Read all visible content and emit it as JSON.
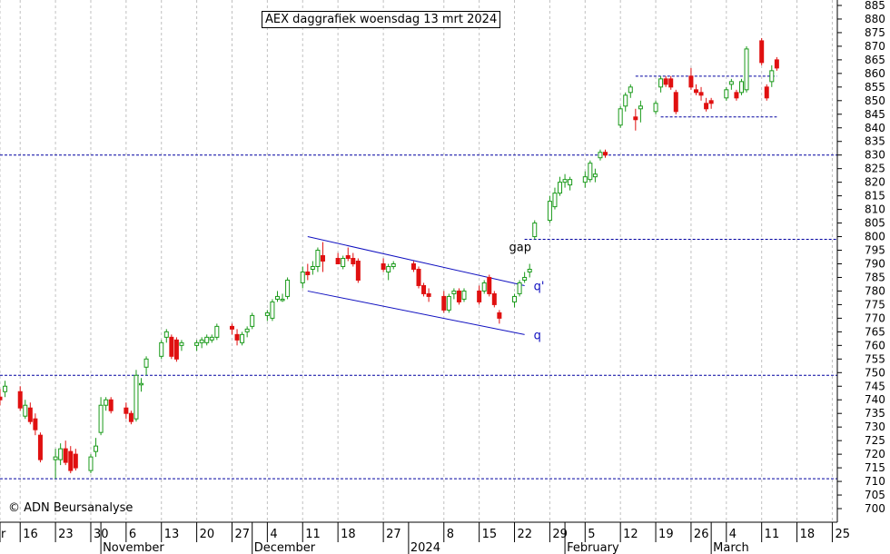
{
  "title": "AEX daggrafiek woensdag 13 mrt 2024",
  "credit": "© ADN Beursanalyse",
  "colors": {
    "up": "#1a9a1a",
    "down": "#e01010",
    "grid": "#c0c0c0",
    "level": "#0000a0",
    "channel": "#1010c0",
    "axis": "#000000"
  },
  "chart_data": {
    "type": "candlestick",
    "title": "AEX daggrafiek woensdag 13 mrt 2024",
    "ylim": [
      695,
      887
    ],
    "yticks": [
      700,
      705,
      710,
      715,
      720,
      725,
      730,
      735,
      740,
      745,
      750,
      755,
      760,
      765,
      770,
      775,
      780,
      785,
      790,
      795,
      800,
      805,
      810,
      815,
      820,
      825,
      830,
      835,
      840,
      845,
      850,
      855,
      860,
      865,
      870,
      875,
      880,
      885
    ],
    "xlim": [
      "2023-10-12",
      "2024-03-26"
    ],
    "day_ticks": [
      {
        "label": "r",
        "date": "2023-10-12"
      },
      {
        "label": "16",
        "date": "2023-10-16"
      },
      {
        "label": "23",
        "date": "2023-10-23"
      },
      {
        "label": "30",
        "date": "2023-10-30"
      },
      {
        "label": "6",
        "date": "2023-11-06"
      },
      {
        "label": "13",
        "date": "2023-11-13"
      },
      {
        "label": "20",
        "date": "2023-11-20"
      },
      {
        "label": "27",
        "date": "2023-11-27"
      },
      {
        "label": "4",
        "date": "2023-12-04"
      },
      {
        "label": "11",
        "date": "2023-12-11"
      },
      {
        "label": "18",
        "date": "2023-12-18"
      },
      {
        "label": "27",
        "date": "2023-12-27"
      },
      {
        "label": "8",
        "date": "2024-01-08"
      },
      {
        "label": "15",
        "date": "2024-01-15"
      },
      {
        "label": "22",
        "date": "2024-01-22"
      },
      {
        "label": "29",
        "date": "2024-01-29"
      },
      {
        "label": "5",
        "date": "2024-02-05"
      },
      {
        "label": "12",
        "date": "2024-02-12"
      },
      {
        "label": "19",
        "date": "2024-02-19"
      },
      {
        "label": "26",
        "date": "2024-02-26"
      },
      {
        "label": "4",
        "date": "2024-03-04"
      },
      {
        "label": "11",
        "date": "2024-03-11"
      },
      {
        "label": "18",
        "date": "2024-03-18"
      },
      {
        "label": "25",
        "date": "2024-03-25"
      }
    ],
    "month_ticks": [
      {
        "label": "November",
        "date": "2023-11-01"
      },
      {
        "label": "December",
        "date": "2023-12-01"
      },
      {
        "label": "2024",
        "date": "2024-01-01"
      },
      {
        "label": "February",
        "date": "2024-02-01"
      },
      {
        "label": "March",
        "date": "2024-03-01"
      }
    ],
    "horizontal_levels": [
      {
        "value": 711,
        "from": "2023-10-12",
        "to": "2024-03-26"
      },
      {
        "value": 749,
        "from": "2023-10-12",
        "to": "2024-03-26"
      },
      {
        "value": 799,
        "from": "2024-01-24",
        "to": "2024-03-26"
      },
      {
        "value": 830,
        "from": "2023-10-12",
        "to": "2024-03-26"
      },
      {
        "value": 859,
        "from": "2024-02-15",
        "to": "2024-03-14"
      },
      {
        "value": 844,
        "from": "2024-02-20",
        "to": "2024-03-14"
      }
    ],
    "trend_lines": [
      {
        "label": "q'",
        "from": {
          "date": "2023-12-12",
          "value": 800
        },
        "to": {
          "date": "2024-01-24",
          "value": 782
        }
      },
      {
        "label": "q",
        "from": {
          "date": "2023-12-12",
          "value": 780
        },
        "to": {
          "date": "2024-01-24",
          "value": 764
        }
      }
    ],
    "annotations": [
      {
        "text": "gap",
        "date": "2024-01-22",
        "value": 795
      }
    ],
    "candles": [
      {
        "date": "2023-10-12",
        "open": 741,
        "high": 744,
        "low": 738,
        "close": 740
      },
      {
        "date": "2023-10-13",
        "open": 743,
        "high": 747,
        "low": 741,
        "close": 745
      },
      {
        "date": "2023-10-16",
        "open": 743,
        "high": 745,
        "low": 736,
        "close": 737
      },
      {
        "date": "2023-10-17",
        "open": 734,
        "high": 740,
        "low": 733,
        "close": 738
      },
      {
        "date": "2023-10-18",
        "open": 737,
        "high": 739,
        "low": 731,
        "close": 732
      },
      {
        "date": "2023-10-19",
        "open": 733,
        "high": 735,
        "low": 727,
        "close": 729
      },
      {
        "date": "2023-10-20",
        "open": 727,
        "high": 728,
        "low": 717,
        "close": 718
      },
      {
        "date": "2023-10-23",
        "open": 718,
        "high": 722,
        "low": 711,
        "close": 719
      },
      {
        "date": "2023-10-24",
        "open": 718,
        "high": 724,
        "low": 716,
        "close": 722
      },
      {
        "date": "2023-10-25",
        "open": 722,
        "high": 725,
        "low": 716,
        "close": 717
      },
      {
        "date": "2023-10-26",
        "open": 721,
        "high": 723,
        "low": 713,
        "close": 714
      },
      {
        "date": "2023-10-27",
        "open": 720,
        "high": 722,
        "low": 714,
        "close": 715
      },
      {
        "date": "2023-10-30",
        "open": 714,
        "high": 720,
        "low": 713,
        "close": 719
      },
      {
        "date": "2023-10-31",
        "open": 721,
        "high": 726,
        "low": 719,
        "close": 723
      },
      {
        "date": "2023-11-01",
        "open": 728,
        "high": 741,
        "low": 727,
        "close": 738
      },
      {
        "date": "2023-11-02",
        "open": 738,
        "high": 741,
        "low": 736,
        "close": 740
      },
      {
        "date": "2023-11-03",
        "open": 740,
        "high": 741,
        "low": 735,
        "close": 736
      },
      {
        "date": "2023-11-06",
        "open": 737,
        "high": 739,
        "low": 733,
        "close": 735
      },
      {
        "date": "2023-11-07",
        "open": 735,
        "high": 736,
        "low": 731,
        "close": 732
      },
      {
        "date": "2023-11-08",
        "open": 733,
        "high": 751,
        "low": 732,
        "close": 749
      },
      {
        "date": "2023-11-09",
        "open": 746,
        "high": 748,
        "low": 743,
        "close": 746
      },
      {
        "date": "2023-11-10",
        "open": 752,
        "high": 756,
        "low": 749,
        "close": 755
      },
      {
        "date": "2023-11-13",
        "open": 756,
        "high": 762,
        "low": 755,
        "close": 761
      },
      {
        "date": "2023-11-14",
        "open": 763,
        "high": 766,
        "low": 761,
        "close": 765
      },
      {
        "date": "2023-11-15",
        "open": 763,
        "high": 764,
        "low": 755,
        "close": 756
      },
      {
        "date": "2023-11-16",
        "open": 762,
        "high": 763,
        "low": 754,
        "close": 755
      },
      {
        "date": "2023-11-17",
        "open": 760,
        "high": 762,
        "low": 758,
        "close": 761
      },
      {
        "date": "2023-11-20",
        "open": 760,
        "high": 762,
        "low": 758,
        "close": 761
      },
      {
        "date": "2023-11-21",
        "open": 761,
        "high": 763,
        "low": 759,
        "close": 762
      },
      {
        "date": "2023-11-22",
        "open": 761,
        "high": 764,
        "low": 760,
        "close": 763
      },
      {
        "date": "2023-11-23",
        "open": 762,
        "high": 764,
        "low": 761,
        "close": 763
      },
      {
        "date": "2023-11-24",
        "open": 763,
        "high": 768,
        "low": 762,
        "close": 767
      },
      {
        "date": "2023-11-27",
        "open": 767,
        "high": 768,
        "low": 764,
        "close": 766
      },
      {
        "date": "2023-11-28",
        "open": 764,
        "high": 766,
        "low": 760,
        "close": 762
      },
      {
        "date": "2023-11-29",
        "open": 761,
        "high": 765,
        "low": 760,
        "close": 764
      },
      {
        "date": "2023-11-30",
        "open": 765,
        "high": 767,
        "low": 763,
        "close": 766
      },
      {
        "date": "2023-12-01",
        "open": 767,
        "high": 772,
        "low": 766,
        "close": 771
      },
      {
        "date": "2023-12-04",
        "open": 771,
        "high": 773,
        "low": 769,
        "close": 772
      },
      {
        "date": "2023-12-05",
        "open": 770,
        "high": 777,
        "low": 769,
        "close": 776
      },
      {
        "date": "2023-12-06",
        "open": 777,
        "high": 780,
        "low": 776,
        "close": 778
      },
      {
        "date": "2023-12-07",
        "open": 777,
        "high": 779,
        "low": 776,
        "close": 777
      },
      {
        "date": "2023-12-08",
        "open": 778,
        "high": 785,
        "low": 777,
        "close": 784
      },
      {
        "date": "2023-12-11",
        "open": 783,
        "high": 789,
        "low": 781,
        "close": 787
      },
      {
        "date": "2023-12-12",
        "open": 787,
        "high": 790,
        "low": 784,
        "close": 786
      },
      {
        "date": "2023-12-13",
        "open": 788,
        "high": 791,
        "low": 786,
        "close": 789
      },
      {
        "date": "2023-12-14",
        "open": 789,
        "high": 796,
        "low": 787,
        "close": 795
      },
      {
        "date": "2023-12-15",
        "open": 793,
        "high": 798,
        "low": 787,
        "close": 791
      },
      {
        "date": "2023-12-18",
        "open": 792,
        "high": 794,
        "low": 790,
        "close": 790
      },
      {
        "date": "2023-12-19",
        "open": 789,
        "high": 793,
        "low": 788,
        "close": 792
      },
      {
        "date": "2023-12-20",
        "open": 793,
        "high": 796,
        "low": 791,
        "close": 792
      },
      {
        "date": "2023-12-21",
        "open": 792,
        "high": 794,
        "low": 789,
        "close": 790
      },
      {
        "date": "2023-12-22",
        "open": 791,
        "high": 792,
        "low": 783,
        "close": 784
      },
      {
        "date": "2023-12-27",
        "open": 790,
        "high": 792,
        "low": 787,
        "close": 788
      },
      {
        "date": "2023-12-28",
        "open": 787,
        "high": 790,
        "low": 784,
        "close": 789
      },
      {
        "date": "2023-12-29",
        "open": 789,
        "high": 791,
        "low": 788,
        "close": 790
      },
      {
        "date": "2024-01-02",
        "open": 790,
        "high": 791,
        "low": 787,
        "close": 788
      },
      {
        "date": "2024-01-03",
        "open": 788,
        "high": 789,
        "low": 781,
        "close": 782
      },
      {
        "date": "2024-01-04",
        "open": 782,
        "high": 783,
        "low": 778,
        "close": 779
      },
      {
        "date": "2024-01-05",
        "open": 779,
        "high": 781,
        "low": 776,
        "close": 778
      },
      {
        "date": "2024-01-08",
        "open": 778,
        "high": 780,
        "low": 772,
        "close": 773
      },
      {
        "date": "2024-01-09",
        "open": 773,
        "high": 779,
        "low": 772,
        "close": 778
      },
      {
        "date": "2024-01-10",
        "open": 779,
        "high": 781,
        "low": 777,
        "close": 780
      },
      {
        "date": "2024-01-11",
        "open": 780,
        "high": 781,
        "low": 775,
        "close": 776
      },
      {
        "date": "2024-01-12",
        "open": 777,
        "high": 781,
        "low": 776,
        "close": 780
      },
      {
        "date": "2024-01-15",
        "open": 780,
        "high": 782,
        "low": 775,
        "close": 776
      },
      {
        "date": "2024-01-16",
        "open": 780,
        "high": 784,
        "low": 779,
        "close": 783
      },
      {
        "date": "2024-01-17",
        "open": 785,
        "high": 786,
        "low": 778,
        "close": 779
      },
      {
        "date": "2024-01-18",
        "open": 779,
        "high": 780,
        "low": 774,
        "close": 775
      },
      {
        "date": "2024-01-19",
        "open": 772,
        "high": 773,
        "low": 768,
        "close": 770
      },
      {
        "date": "2024-01-22",
        "open": 776,
        "high": 779,
        "low": 774,
        "close": 778
      },
      {
        "date": "2024-01-23",
        "open": 779,
        "high": 784,
        "low": 778,
        "close": 783
      },
      {
        "date": "2024-01-24",
        "open": 784,
        "high": 787,
        "low": 783,
        "close": 785
      },
      {
        "date": "2024-01-25",
        "open": 787,
        "high": 790,
        "low": 785,
        "close": 788
      },
      {
        "date": "2024-01-26",
        "open": 800,
        "high": 806,
        "low": 799,
        "close": 805
      },
      {
        "date": "2024-01-29",
        "open": 806,
        "high": 815,
        "low": 805,
        "close": 813
      },
      {
        "date": "2024-01-30",
        "open": 811,
        "high": 818,
        "low": 810,
        "close": 816
      },
      {
        "date": "2024-01-31",
        "open": 816,
        "high": 822,
        "low": 815,
        "close": 820
      },
      {
        "date": "2024-02-01",
        "open": 820,
        "high": 823,
        "low": 818,
        "close": 821
      },
      {
        "date": "2024-02-02",
        "open": 819,
        "high": 822,
        "low": 817,
        "close": 821
      },
      {
        "date": "2024-02-05",
        "open": 820,
        "high": 824,
        "low": 818,
        "close": 822
      },
      {
        "date": "2024-02-06",
        "open": 821,
        "high": 828,
        "low": 820,
        "close": 827
      },
      {
        "date": "2024-02-07",
        "open": 822,
        "high": 825,
        "low": 820,
        "close": 823
      },
      {
        "date": "2024-02-08",
        "open": 829,
        "high": 832,
        "low": 828,
        "close": 831
      },
      {
        "date": "2024-02-09",
        "open": 831,
        "high": 832,
        "low": 829,
        "close": 830
      },
      {
        "date": "2024-02-12",
        "open": 841,
        "high": 848,
        "low": 840,
        "close": 847
      },
      {
        "date": "2024-02-13",
        "open": 848,
        "high": 853,
        "low": 846,
        "close": 852
      },
      {
        "date": "2024-02-14",
        "open": 853,
        "high": 856,
        "low": 851,
        "close": 855
      },
      {
        "date": "2024-02-15",
        "open": 844,
        "high": 847,
        "low": 839,
        "close": 843
      },
      {
        "date": "2024-02-16",
        "open": 847,
        "high": 850,
        "low": 842,
        "close": 848
      },
      {
        "date": "2024-02-19",
        "open": 846,
        "high": 850,
        "low": 845,
        "close": 849
      },
      {
        "date": "2024-02-20",
        "open": 855,
        "high": 859,
        "low": 853,
        "close": 858
      },
      {
        "date": "2024-02-21",
        "open": 858,
        "high": 859,
        "low": 855,
        "close": 856
      },
      {
        "date": "2024-02-22",
        "open": 858,
        "high": 859,
        "low": 854,
        "close": 855
      },
      {
        "date": "2024-02-23",
        "open": 853,
        "high": 854,
        "low": 845,
        "close": 846
      },
      {
        "date": "2024-02-26",
        "open": 859,
        "high": 862,
        "low": 854,
        "close": 855
      },
      {
        "date": "2024-02-27",
        "open": 854,
        "high": 856,
        "low": 852,
        "close": 853
      },
      {
        "date": "2024-02-28",
        "open": 853,
        "high": 855,
        "low": 850,
        "close": 852
      },
      {
        "date": "2024-02-29",
        "open": 849,
        "high": 851,
        "low": 846,
        "close": 847
      },
      {
        "date": "2024-03-01",
        "open": 850,
        "high": 851,
        "low": 847,
        "close": 849
      },
      {
        "date": "2024-03-04",
        "open": 851,
        "high": 855,
        "low": 850,
        "close": 854
      },
      {
        "date": "2024-03-05",
        "open": 856,
        "high": 858,
        "low": 854,
        "close": 857
      },
      {
        "date": "2024-03-06",
        "open": 853,
        "high": 854,
        "low": 850,
        "close": 851
      },
      {
        "date": "2024-03-07",
        "open": 853,
        "high": 858,
        "low": 852,
        "close": 857
      },
      {
        "date": "2024-03-08",
        "open": 854,
        "high": 870,
        "low": 853,
        "close": 869
      },
      {
        "date": "2024-03-11",
        "open": 872,
        "high": 873,
        "low": 863,
        "close": 864
      },
      {
        "date": "2024-03-12",
        "open": 855,
        "high": 856,
        "low": 850,
        "close": 851
      },
      {
        "date": "2024-03-13",
        "open": 857,
        "high": 863,
        "low": 855,
        "close": 861
      },
      {
        "date": "2024-03-14",
        "open": 865,
        "high": 866,
        "low": 861,
        "close": 862
      }
    ]
  }
}
